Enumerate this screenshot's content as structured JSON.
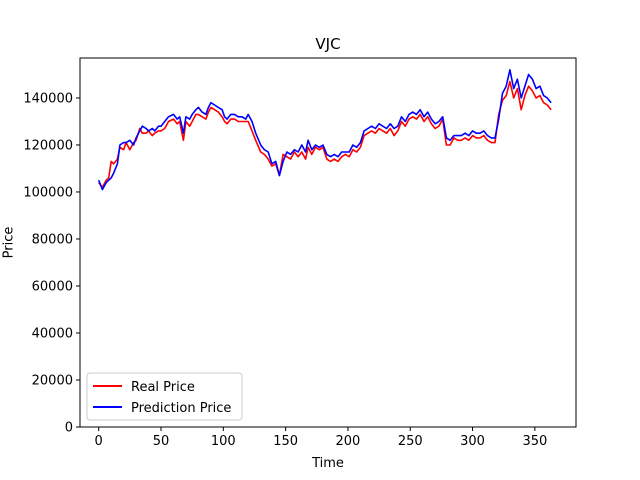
{
  "chart_data": {
    "type": "line",
    "title": "VJC",
    "xlabel": "Time",
    "ylabel": "Price",
    "xlim": [
      -15,
      383
    ],
    "ylim": [
      0,
      157000
    ],
    "xticks": [
      0,
      50,
      100,
      150,
      200,
      250,
      300,
      350
    ],
    "yticks": [
      0,
      20000,
      40000,
      60000,
      80000,
      100000,
      120000,
      140000
    ],
    "grid": false,
    "legend_position": "lower-left",
    "series": [
      {
        "name": "Real Price",
        "color": "#ff0000",
        "x": [
          0,
          3,
          6,
          8,
          10,
          12,
          15,
          17,
          20,
          22,
          25,
          28,
          30,
          33,
          35,
          38,
          40,
          43,
          45,
          48,
          50,
          53,
          56,
          60,
          63,
          65,
          68,
          70,
          73,
          75,
          78,
          80,
          83,
          86,
          88,
          90,
          93,
          96,
          99,
          101,
          103,
          106,
          109,
          112,
          115,
          118,
          120,
          123,
          126,
          130,
          133,
          136,
          139,
          142,
          145,
          148,
          151,
          154,
          157,
          160,
          163,
          166,
          168,
          171,
          174,
          177,
          180,
          183,
          186,
          189,
          192,
          195,
          198,
          201,
          204,
          207,
          210,
          213,
          216,
          219,
          222,
          225,
          228,
          231,
          234,
          237,
          240,
          243,
          246,
          249,
          252,
          255,
          258,
          261,
          264,
          267,
          270,
          273,
          276,
          279,
          282,
          285,
          288,
          291,
          294,
          297,
          300,
          303,
          306,
          309,
          312,
          315,
          318,
          321,
          324,
          327,
          330,
          333,
          336,
          339,
          342,
          345,
          348,
          351,
          354,
          357,
          360,
          363
        ],
        "y": [
          104000,
          102000,
          105000,
          106000,
          113000,
          112000,
          114000,
          119000,
          118000,
          121000,
          118000,
          121000,
          122000,
          127000,
          125000,
          125000,
          126000,
          124000,
          125000,
          126000,
          126000,
          127000,
          130000,
          131000,
          129000,
          130000,
          122000,
          130000,
          128000,
          130000,
          133000,
          133000,
          132000,
          131000,
          134000,
          136000,
          135000,
          134000,
          132000,
          130000,
          129000,
          131000,
          131000,
          130000,
          130000,
          130000,
          130000,
          126000,
          122000,
          117000,
          116000,
          114000,
          111000,
          112000,
          107000,
          116000,
          115000,
          114000,
          117000,
          115000,
          117000,
          114000,
          119000,
          116000,
          119000,
          118000,
          119000,
          114000,
          113000,
          114000,
          113000,
          115000,
          116000,
          115000,
          118000,
          117000,
          119000,
          124000,
          125000,
          126000,
          125000,
          127000,
          126000,
          125000,
          127000,
          124000,
          126000,
          130000,
          128000,
          131000,
          132000,
          131000,
          133000,
          130000,
          132000,
          129000,
          127000,
          128000,
          131000,
          120000,
          120000,
          123000,
          122000,
          122000,
          123000,
          122000,
          124000,
          123000,
          123000,
          124000,
          122000,
          121000,
          121000,
          133000,
          139000,
          141000,
          147000,
          140000,
          144000,
          135000,
          141000,
          145000,
          143000,
          140000,
          141000,
          138000,
          137000,
          135000
        ],
        "label": "Real Price"
      },
      {
        "name": "Prediction Price",
        "color": "#0000ff",
        "x": [
          0,
          3,
          6,
          8,
          10,
          12,
          15,
          17,
          20,
          22,
          25,
          28,
          30,
          33,
          35,
          38,
          40,
          43,
          45,
          48,
          50,
          53,
          56,
          60,
          63,
          65,
          68,
          70,
          73,
          75,
          78,
          80,
          83,
          86,
          88,
          90,
          93,
          96,
          99,
          101,
          103,
          106,
          109,
          112,
          115,
          118,
          120,
          123,
          126,
          130,
          133,
          136,
          139,
          142,
          145,
          148,
          151,
          154,
          157,
          160,
          163,
          166,
          168,
          171,
          174,
          177,
          180,
          183,
          186,
          189,
          192,
          195,
          198,
          201,
          204,
          207,
          210,
          213,
          216,
          219,
          222,
          225,
          228,
          231,
          234,
          237,
          240,
          243,
          246,
          249,
          252,
          255,
          258,
          261,
          264,
          267,
          270,
          273,
          276,
          279,
          282,
          285,
          288,
          291,
          294,
          297,
          300,
          303,
          306,
          309,
          312,
          315,
          318,
          321,
          324,
          327,
          330,
          333,
          336,
          339,
          342,
          345,
          348,
          351,
          354,
          357,
          360,
          363
        ],
        "y": [
          105000,
          101000,
          104000,
          105000,
          106000,
          108000,
          112000,
          120000,
          121000,
          121000,
          122000,
          120000,
          123000,
          126000,
          128000,
          127000,
          126000,
          127000,
          126000,
          128000,
          128000,
          130000,
          132000,
          133000,
          131000,
          132000,
          125000,
          132000,
          131000,
          133000,
          135000,
          136000,
          134000,
          133000,
          136000,
          138000,
          137000,
          136000,
          135000,
          132000,
          131000,
          133000,
          133000,
          132000,
          132000,
          131000,
          133000,
          130000,
          125000,
          120000,
          118000,
          117000,
          112000,
          113000,
          107000,
          113000,
          117000,
          116000,
          118000,
          117000,
          120000,
          117000,
          122000,
          118000,
          120000,
          119000,
          120000,
          116000,
          115000,
          116000,
          115000,
          117000,
          117000,
          117000,
          120000,
          119000,
          121000,
          126000,
          127000,
          128000,
          127000,
          129000,
          128000,
          127000,
          129000,
          127000,
          128000,
          132000,
          130000,
          133000,
          134000,
          133000,
          135000,
          132000,
          134000,
          131000,
          129000,
          130000,
          132000,
          123000,
          122000,
          124000,
          124000,
          124000,
          125000,
          124000,
          126000,
          125000,
          125000,
          126000,
          124000,
          123000,
          123000,
          131000,
          142000,
          145000,
          152000,
          144000,
          148000,
          140000,
          145000,
          150000,
          148000,
          144000,
          145000,
          141000,
          140000,
          138000
        ],
        "label": "Prediction Price"
      }
    ]
  }
}
